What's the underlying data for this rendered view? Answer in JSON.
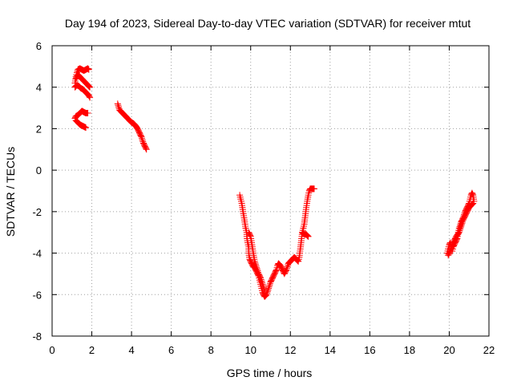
{
  "chart_data": {
    "type": "scatter",
    "title": "Day 194 of 2023, Sidereal Day-to-day VTEC variation (SDTVAR) for receiver mtut",
    "xlabel": "GPS time / hours",
    "ylabel": "SDTVAR / TECUs",
    "xlim": [
      0,
      22
    ],
    "ylim": [
      -8,
      6
    ],
    "xticks": [
      "0",
      "2",
      "4",
      "6",
      "8",
      "10",
      "12",
      "14",
      "16",
      "18",
      "20",
      "22"
    ],
    "yticks": [
      "-8",
      "-6",
      "-4",
      "-2",
      "0",
      "2",
      "4",
      "6"
    ],
    "grid": true,
    "marker": "plus",
    "color": "#ff0000",
    "series": [
      {
        "name": "SDTVAR",
        "segments": [
          [
            [
              1.15,
              4.2
            ],
            [
              1.2,
              4.5
            ],
            [
              1.25,
              4.7
            ],
            [
              1.3,
              4.85
            ],
            [
              1.4,
              4.9
            ],
            [
              1.5,
              4.85
            ],
            [
              1.6,
              4.8
            ],
            [
              1.7,
              4.85
            ],
            [
              1.8,
              4.9
            ],
            [
              1.85,
              4.85
            ]
          ],
          [
            [
              1.2,
              4.4
            ],
            [
              1.3,
              4.6
            ],
            [
              1.4,
              4.5
            ],
            [
              1.5,
              4.4
            ],
            [
              1.6,
              4.3
            ],
            [
              1.7,
              4.2
            ],
            [
              1.8,
              4.1
            ],
            [
              1.9,
              4.0
            ]
          ],
          [
            [
              1.15,
              4.0
            ],
            [
              1.25,
              4.1
            ],
            [
              1.35,
              4.05
            ],
            [
              1.45,
              3.95
            ],
            [
              1.55,
              3.9
            ],
            [
              1.65,
              3.8
            ],
            [
              1.75,
              3.7
            ],
            [
              1.85,
              3.6
            ],
            [
              1.9,
              3.5
            ]
          ],
          [
            [
              1.15,
              2.5
            ],
            [
              1.2,
              2.6
            ],
            [
              1.3,
              2.65
            ],
            [
              1.4,
              2.75
            ],
            [
              1.5,
              2.85
            ],
            [
              1.6,
              2.8
            ],
            [
              1.7,
              2.75
            ],
            [
              1.8,
              2.75
            ]
          ],
          [
            [
              1.2,
              2.4
            ],
            [
              1.3,
              2.3
            ],
            [
              1.4,
              2.2
            ],
            [
              1.5,
              2.15
            ],
            [
              1.6,
              2.1
            ],
            [
              1.7,
              2.05
            ]
          ],
          [
            [
              3.3,
              3.2
            ],
            [
              3.35,
              3.05
            ],
            [
              3.4,
              2.9
            ],
            [
              3.5,
              2.8
            ],
            [
              3.6,
              2.7
            ],
            [
              3.7,
              2.6
            ],
            [
              3.8,
              2.5
            ],
            [
              3.9,
              2.4
            ],
            [
              4.0,
              2.3
            ],
            [
              4.1,
              2.25
            ],
            [
              4.2,
              2.15
            ],
            [
              4.3,
              2.0
            ],
            [
              4.35,
              1.9
            ],
            [
              4.4,
              1.8
            ],
            [
              4.45,
              1.7
            ],
            [
              4.5,
              1.6
            ],
            [
              4.55,
              1.45
            ],
            [
              4.6,
              1.3
            ],
            [
              4.65,
              1.2
            ],
            [
              4.7,
              1.1
            ],
            [
              4.75,
              1.0
            ]
          ],
          [
            [
              9.45,
              -1.2
            ],
            [
              9.5,
              -1.4
            ],
            [
              9.55,
              -1.6
            ],
            [
              9.6,
              -1.9
            ],
            [
              9.65,
              -2.2
            ],
            [
              9.7,
              -2.5
            ],
            [
              9.75,
              -2.8
            ],
            [
              9.8,
              -3.0
            ],
            [
              9.8,
              -3.2
            ],
            [
              9.85,
              -3.5
            ],
            [
              9.9,
              -3.7
            ],
            [
              9.9,
              -4.0
            ],
            [
              9.95,
              -4.3
            ],
            [
              10.0,
              -4.4
            ],
            [
              10.05,
              -4.5
            ],
            [
              10.1,
              -4.6
            ],
            [
              10.2,
              -4.7
            ],
            [
              10.3,
              -4.9
            ],
            [
              10.4,
              -5.1
            ],
            [
              10.45,
              -5.3
            ],
            [
              10.5,
              -5.5
            ],
            [
              10.55,
              -5.7
            ],
            [
              10.6,
              -5.9
            ],
            [
              10.65,
              -6.0
            ],
            [
              10.7,
              -6.1
            ],
            [
              10.8,
              -6.0
            ],
            [
              10.9,
              -5.7
            ],
            [
              11.0,
              -5.4
            ],
            [
              11.1,
              -5.2
            ],
            [
              11.2,
              -5.0
            ],
            [
              11.3,
              -4.8
            ],
            [
              11.35,
              -4.6
            ],
            [
              11.4,
              -4.5
            ],
            [
              11.5,
              -4.6
            ],
            [
              11.6,
              -4.8
            ],
            [
              11.7,
              -5.0
            ],
            [
              11.8,
              -4.8
            ],
            [
              11.9,
              -4.5
            ],
            [
              12.0,
              -4.4
            ],
            [
              12.1,
              -4.3
            ],
            [
              12.2,
              -4.2
            ],
            [
              12.3,
              -4.3
            ],
            [
              12.4,
              -4.4
            ],
            [
              12.45,
              -4.2
            ],
            [
              12.5,
              -3.8
            ],
            [
              12.55,
              -3.4
            ],
            [
              12.6,
              -3.0
            ],
            [
              12.7,
              -2.6
            ],
            [
              12.75,
              -2.2
            ],
            [
              12.8,
              -1.8
            ],
            [
              12.85,
              -1.5
            ],
            [
              12.9,
              -1.2
            ],
            [
              12.95,
              -1.0
            ],
            [
              13.0,
              -0.9
            ],
            [
              13.1,
              -0.9
            ],
            [
              13.2,
              -0.9
            ]
          ],
          [
            [
              9.9,
              -3.0
            ],
            [
              10.0,
              -3.2
            ],
            [
              10.05,
              -3.5
            ],
            [
              10.1,
              -3.8
            ],
            [
              10.15,
              -4.1
            ],
            [
              10.2,
              -4.4
            ],
            [
              10.3,
              -4.7
            ],
            [
              10.4,
              -5.0
            ],
            [
              10.5,
              -5.2
            ],
            [
              10.6,
              -5.5
            ],
            [
              10.7,
              -5.8
            ]
          ],
          [
            [
              12.6,
              -3.0
            ],
            [
              12.7,
              -3.1
            ],
            [
              12.8,
              -3.1
            ],
            [
              12.9,
              -3.2
            ]
          ],
          [
            [
              19.9,
              -4.0
            ],
            [
              19.95,
              -3.8
            ],
            [
              20.0,
              -3.6
            ],
            [
              20.05,
              -3.5
            ],
            [
              20.1,
              -3.7
            ],
            [
              20.15,
              -3.9
            ],
            [
              20.2,
              -3.7
            ],
            [
              20.3,
              -3.5
            ],
            [
              20.4,
              -3.3
            ],
            [
              20.45,
              -3.0
            ],
            [
              20.5,
              -2.8
            ],
            [
              20.6,
              -2.5
            ],
            [
              20.7,
              -2.3
            ],
            [
              20.8,
              -2.0
            ],
            [
              20.9,
              -1.8
            ],
            [
              21.0,
              -1.6
            ],
            [
              21.05,
              -1.4
            ],
            [
              21.1,
              -1.2
            ],
            [
              21.15,
              -1.1
            ],
            [
              21.2,
              -1.2
            ],
            [
              21.25,
              -1.5
            ]
          ],
          [
            [
              19.95,
              -4.1
            ],
            [
              20.05,
              -3.9
            ],
            [
              20.15,
              -3.6
            ],
            [
              20.25,
              -3.4
            ],
            [
              20.35,
              -3.2
            ],
            [
              20.5,
              -3.0
            ],
            [
              20.6,
              -2.7
            ],
            [
              20.7,
              -2.4
            ],
            [
              20.8,
              -2.2
            ],
            [
              20.9,
              -2.0
            ],
            [
              21.0,
              -1.8
            ],
            [
              21.1,
              -1.7
            ],
            [
              21.2,
              -1.6
            ]
          ]
        ]
      }
    ]
  }
}
